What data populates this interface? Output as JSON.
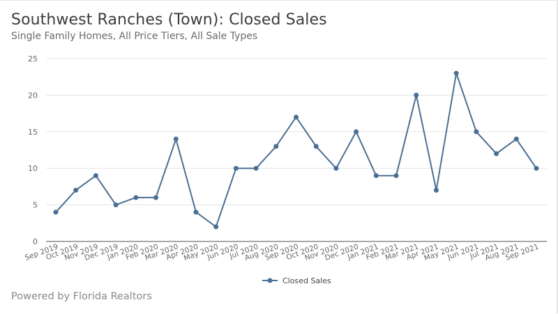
{
  "header": {
    "title": "Southwest Ranches (Town): Closed Sales",
    "subtitle": "Single Family Homes, All Price Tiers, All Sale Types"
  },
  "footer": {
    "text": "Powered by Florida Realtors"
  },
  "colors": {
    "series": "#4a6f93",
    "grid": "#e3e3e3",
    "axis": "#8c8c8c"
  },
  "chart_data": {
    "type": "line",
    "title": "Southwest Ranches (Town): Closed Sales",
    "subtitle": "Single Family Homes, All Price Tiers, All Sale Types",
    "xlabel": "",
    "ylabel": "",
    "ylim": [
      0,
      25
    ],
    "yticks": [
      0,
      5,
      10,
      15,
      20,
      25
    ],
    "grid": true,
    "legend_position": "bottom",
    "categories": [
      "Sep 2019",
      "Oct 2019",
      "Nov 2019",
      "Dec 2019",
      "Jan 2020",
      "Feb 2020",
      "Mar 2020",
      "Apr 2020",
      "May 2020",
      "Jun 2020",
      "Jul 2020",
      "Aug 2020",
      "Sep 2020",
      "Oct 2020",
      "Nov 2020",
      "Dec 2020",
      "Jan 2021",
      "Feb 2021",
      "Mar 2021",
      "Apr 2021",
      "May 2021",
      "Jun 2021",
      "Jul 2021",
      "Aug 2021",
      "Sep 2021"
    ],
    "series": [
      {
        "name": "Closed Sales",
        "values": [
          4,
          7,
          9,
          5,
          6,
          6,
          14,
          4,
          2,
          10,
          10,
          13,
          17,
          13,
          10,
          15,
          9,
          9,
          20,
          7,
          23,
          15,
          12,
          14,
          10
        ]
      }
    ]
  }
}
